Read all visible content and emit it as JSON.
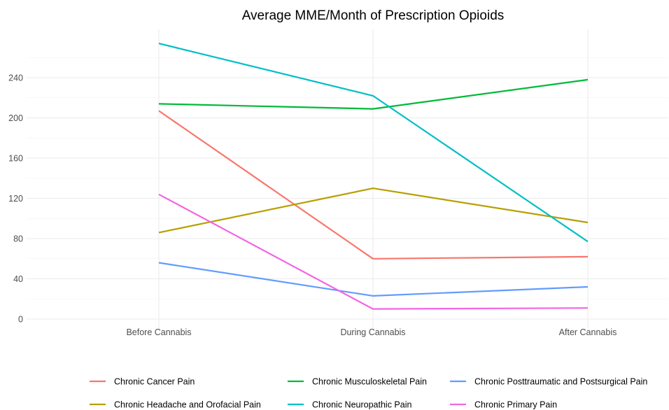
{
  "chart_data": {
    "type": "line",
    "title": "Average MME/Month of Prescription Opioids",
    "xlabel": "",
    "ylabel": "",
    "categories": [
      "Before Cannabis",
      "During Cannabis",
      "After Cannabis"
    ],
    "yticks": [
      0,
      40,
      80,
      120,
      160,
      200,
      240
    ],
    "ylim": [
      0,
      285
    ],
    "grid": true,
    "legend_position": "bottom",
    "series": [
      {
        "name": "Chronic Cancer Pain",
        "color": "#F8766D",
        "values": [
          207,
          60,
          62
        ]
      },
      {
        "name": "Chronic Headache and Orofacial Pain",
        "color": "#B79F00",
        "values": [
          86,
          130,
          96
        ]
      },
      {
        "name": "Chronic Musculoskeletal Pain",
        "color": "#00BA38",
        "values": [
          214,
          209,
          238
        ]
      },
      {
        "name": "Chronic Neuropathic Pain",
        "color": "#00BFC4",
        "values": [
          274,
          222,
          77
        ]
      },
      {
        "name": "Chronic Posttraumatic and Postsurgical Pain",
        "color": "#619CFF",
        "values": [
          56,
          23,
          32
        ]
      },
      {
        "name": "Chronic Primary Pain",
        "color": "#F564E3",
        "values": [
          124,
          10,
          11
        ]
      }
    ]
  }
}
